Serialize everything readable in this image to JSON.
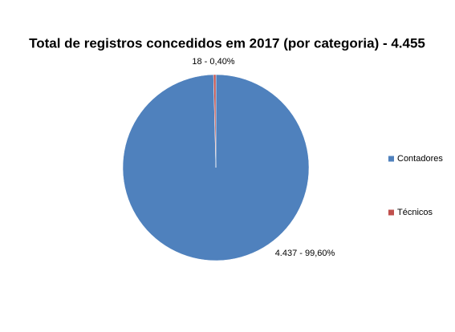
{
  "chart_data": {
    "type": "pie",
    "title": "Total de registros concedidos em 2017 (por categoria) - 4.455",
    "categories": [
      "Contadores",
      "Técnicos"
    ],
    "values": [
      99.6,
      0.4
    ],
    "value_labels": [
      "4.437 - 99,60%",
      "18 - 0,40%"
    ],
    "colors": [
      "#4f81bd",
      "#c0504d"
    ],
    "legend": "right"
  }
}
